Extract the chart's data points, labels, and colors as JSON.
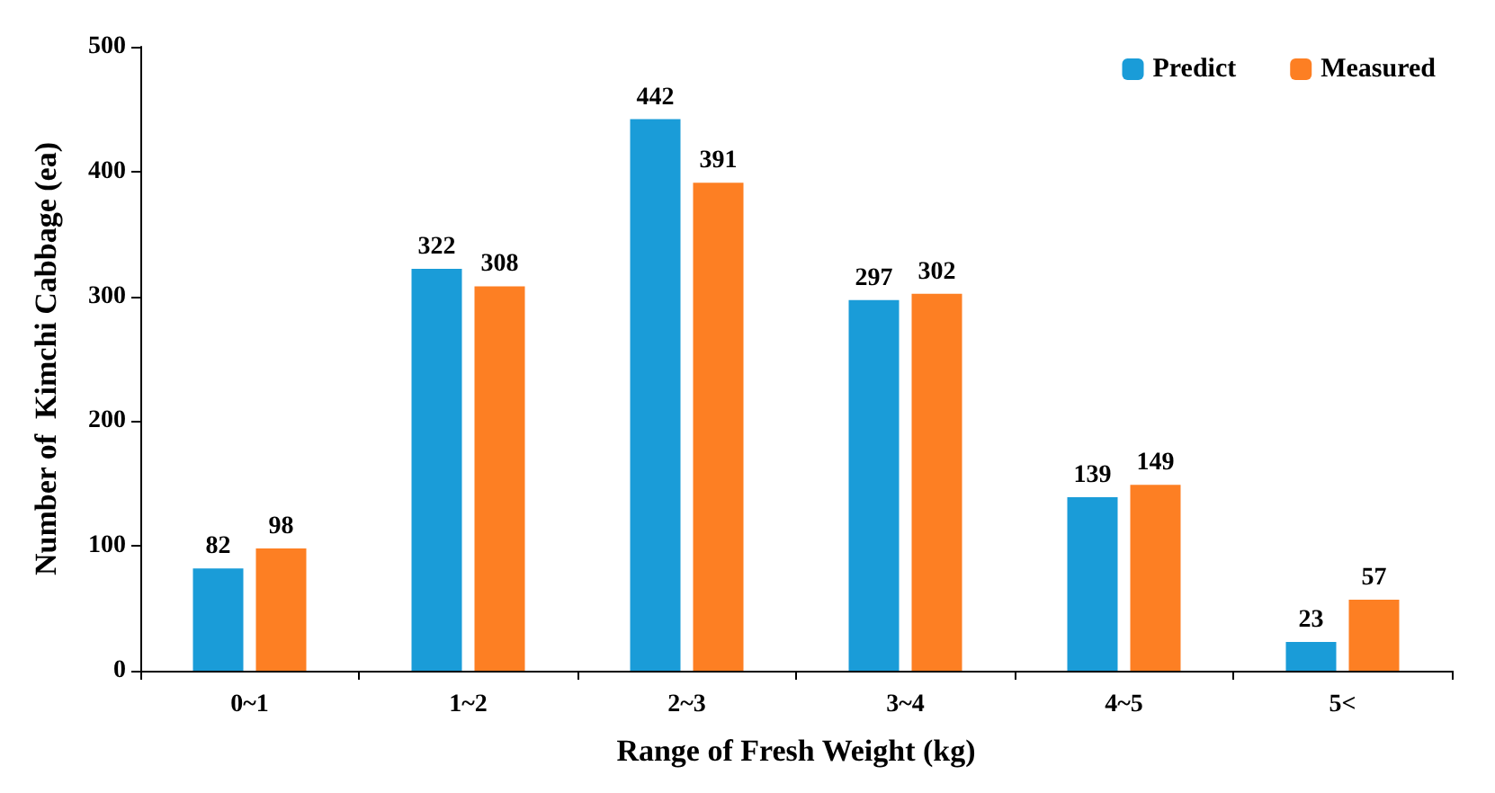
{
  "chart_data": {
    "type": "bar",
    "xlabel": "Range of Fresh Weight (kg)",
    "ylabel": "Number of  Kimchi Cabbage (ea)",
    "categories": [
      "0~1",
      "1~2",
      "2~3",
      "3~4",
      "4~5",
      "5<"
    ],
    "series": [
      {
        "name": "Predict",
        "color": "#1a9cd8",
        "values": [
          82,
          322,
          442,
          297,
          139,
          23
        ]
      },
      {
        "name": "Measured",
        "color": "#fd7f23",
        "values": [
          98,
          308,
          391,
          302,
          149,
          57
        ]
      }
    ],
    "ylim": [
      0,
      500
    ],
    "yticks": [
      0,
      100,
      200,
      300,
      400,
      500
    ],
    "grid": false,
    "legend": "top right",
    "data_labels": true
  }
}
